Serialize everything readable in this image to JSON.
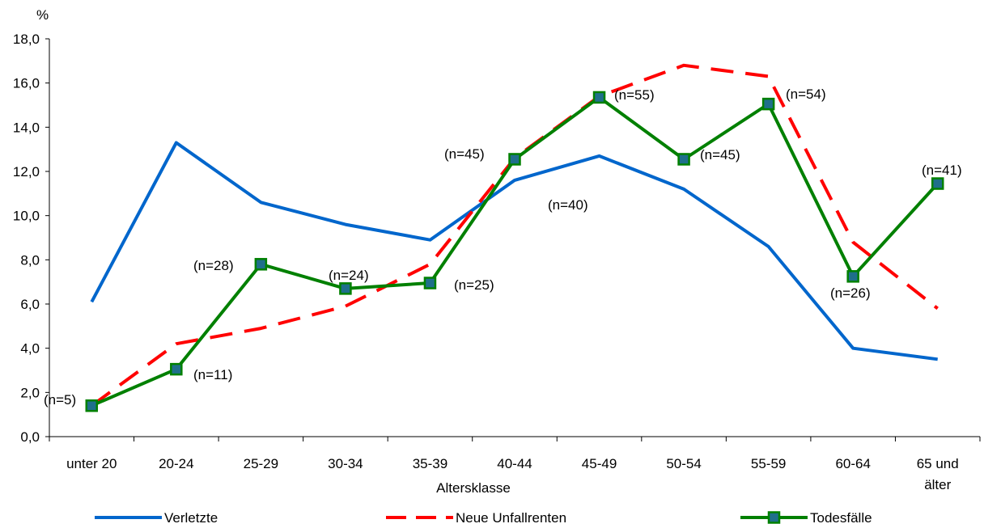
{
  "chart_data": {
    "type": "line",
    "title": "",
    "y_unit": "%",
    "xlabel": "Altersklasse",
    "ylabel": "%",
    "ylim": [
      0,
      18
    ],
    "y_ticks": [
      "0,0",
      "2,0",
      "4,0",
      "6,0",
      "8,0",
      "10,0",
      "12,0",
      "14,0",
      "16,0",
      "18,0"
    ],
    "categories": [
      "unter 20",
      "20-24",
      "25-29",
      "30-34",
      "35-39",
      "40-44",
      "45-49",
      "50-54",
      "55-59",
      "60-64",
      "65 und älter"
    ],
    "category_lines": [
      [
        "unter 20"
      ],
      [
        "20-24"
      ],
      [
        "25-29"
      ],
      [
        "30-34"
      ],
      [
        "35-39"
      ],
      [
        "40-44"
      ],
      [
        "45-49"
      ],
      [
        "50-54"
      ],
      [
        "55-59"
      ],
      [
        "60-64"
      ],
      [
        "65 und",
        "älter"
      ]
    ],
    "series": [
      {
        "name": "Verletzte",
        "color": "#0066CC",
        "style": "solid",
        "values": [
          6.1,
          13.3,
          10.6,
          9.6,
          8.9,
          11.6,
          12.7,
          11.2,
          8.6,
          4.0,
          3.5
        ]
      },
      {
        "name": "Neue Unfallrenten",
        "color": "#FF0000",
        "style": "dashed",
        "values": [
          1.4,
          4.2,
          4.9,
          5.9,
          7.8,
          12.6,
          15.4,
          16.8,
          16.3,
          8.8,
          5.8
        ]
      },
      {
        "name": "Todesfälle",
        "color": "#008000",
        "style": "solid-markers",
        "marker_color": "#1F6F8B",
        "values": [
          1.4,
          3.05,
          7.8,
          6.7,
          6.95,
          12.55,
          15.35,
          12.55,
          15.05,
          7.25,
          11.45
        ]
      }
    ],
    "annotations": [
      "(n=5)",
      "(n=11)",
      "(n=28)",
      "(n=24)",
      "(n=25)",
      "(n=45)",
      "(n=40)",
      "(n=55)",
      "(n=45)",
      "(n=54)",
      "(n=26)",
      "(n=41)"
    ],
    "legend_position": "bottom",
    "grid": false
  }
}
